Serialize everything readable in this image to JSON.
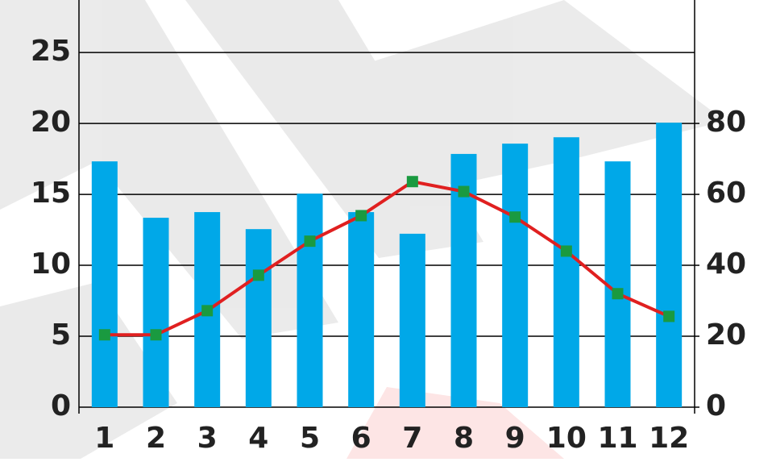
{
  "chart_data": {
    "type": "combo",
    "categories": [
      "1",
      "2",
      "3",
      "4",
      "5",
      "6",
      "7",
      "8",
      "9",
      "10",
      "11",
      "12"
    ],
    "series": [
      {
        "type": "bar",
        "axis": "y2",
        "color": "#00a8e8",
        "values": [
          69.3,
          53.4,
          55.0,
          50.2,
          60.2,
          55.0,
          48.9,
          71.4,
          74.3,
          76.1,
          69.3,
          80.2
        ]
      },
      {
        "type": "line",
        "axis": "y",
        "color": "#e02020",
        "marker_color": "#1a9a40",
        "values": [
          5.1,
          5.1,
          6.8,
          9.3,
          11.7,
          13.5,
          15.9,
          15.2,
          13.4,
          11.0,
          8.0,
          6.4
        ]
      }
    ],
    "ylim": [
      0,
      28.7
    ],
    "yticks": [
      0,
      5,
      10,
      15,
      20,
      25
    ],
    "y2lim": [
      0,
      114.8
    ],
    "y2ticks": [
      0,
      20,
      40,
      60,
      80
    ],
    "grid": true
  }
}
